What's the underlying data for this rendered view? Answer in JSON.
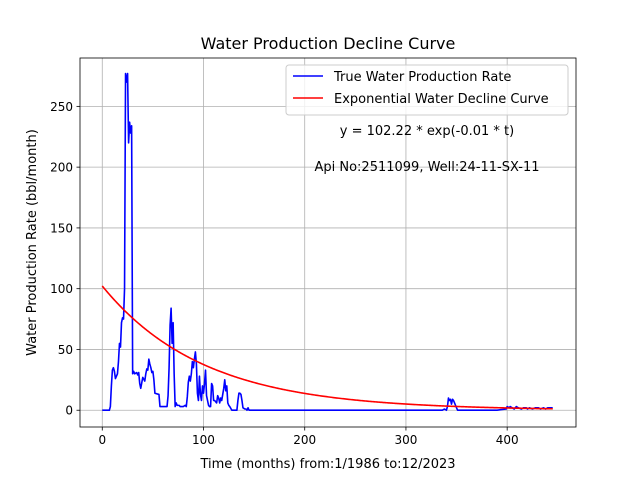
{
  "chart_data": {
    "type": "line",
    "title": "Water Production Decline Curve",
    "xlabel": "Time (months) from:1/1986 to:12/2023",
    "ylabel": "Water Production Rate (bbl/month)",
    "xlim": [
      -22,
      468
    ],
    "ylim": [
      -13.8,
      289.8
    ],
    "xticks": [
      0,
      100,
      200,
      300,
      400
    ],
    "yticks": [
      0,
      50,
      100,
      150,
      200,
      250
    ],
    "grid": true,
    "legend_position": "top-right",
    "annotations": [
      "y = 102.22 * exp(-0.01 * t)",
      "Api No:2511099, Well:24-11-SX-11"
    ],
    "series": [
      {
        "name": "True Water Production Rate",
        "color": "#0000ff",
        "points": [
          [
            0,
            0
          ],
          [
            5,
            0
          ],
          [
            7,
            0
          ],
          [
            8,
            3
          ],
          [
            9,
            20
          ],
          [
            10,
            33
          ],
          [
            11,
            35
          ],
          [
            12,
            32
          ],
          [
            13,
            26
          ],
          [
            14,
            28
          ],
          [
            15,
            30
          ],
          [
            16,
            40
          ],
          [
            17,
            55
          ],
          [
            18,
            52
          ],
          [
            19,
            72
          ],
          [
            20,
            76
          ],
          [
            21,
            75
          ],
          [
            22,
            100
          ],
          [
            23,
            277
          ],
          [
            24,
            270
          ],
          [
            25,
            277
          ],
          [
            26,
            220
          ],
          [
            27,
            237
          ],
          [
            28,
            228
          ],
          [
            29,
            234
          ],
          [
            30,
            30
          ],
          [
            31,
            32
          ],
          [
            32,
            30
          ],
          [
            34,
            31
          ],
          [
            35,
            29
          ],
          [
            36,
            31
          ],
          [
            37,
            22
          ],
          [
            38,
            18
          ],
          [
            40,
            27
          ],
          [
            42,
            24
          ],
          [
            43,
            30
          ],
          [
            44,
            34
          ],
          [
            45,
            33
          ],
          [
            46,
            42
          ],
          [
            47,
            38
          ],
          [
            48,
            35
          ],
          [
            49,
            31
          ],
          [
            50,
            32
          ],
          [
            51,
            25
          ],
          [
            52,
            14
          ],
          [
            56,
            13
          ],
          [
            57,
            3
          ],
          [
            64,
            3
          ],
          [
            65,
            12
          ],
          [
            66,
            35
          ],
          [
            67,
            70
          ],
          [
            68,
            84
          ],
          [
            69,
            55
          ],
          [
            70,
            72
          ],
          [
            71,
            30
          ],
          [
            72,
            3
          ],
          [
            73,
            6
          ],
          [
            74,
            4
          ],
          [
            76,
            4
          ],
          [
            77,
            3
          ],
          [
            80,
            3
          ],
          [
            82,
            4
          ],
          [
            83,
            3
          ],
          [
            84,
            11
          ],
          [
            85,
            23
          ],
          [
            86,
            28
          ],
          [
            87,
            24
          ],
          [
            88,
            30
          ],
          [
            89,
            40
          ],
          [
            90,
            35
          ],
          [
            91,
            42
          ],
          [
            92,
            48
          ],
          [
            93,
            38
          ],
          [
            94,
            14
          ],
          [
            95,
            8
          ],
          [
            96,
            28
          ],
          [
            97,
            13
          ],
          [
            98,
            8
          ],
          [
            99,
            20
          ],
          [
            100,
            14
          ],
          [
            101,
            22
          ],
          [
            102,
            33
          ],
          [
            103,
            12
          ],
          [
            104,
            8
          ],
          [
            105,
            4
          ],
          [
            106,
            3
          ],
          [
            107,
            3
          ],
          [
            108,
            22
          ],
          [
            109,
            20
          ],
          [
            110,
            8
          ],
          [
            111,
            8
          ],
          [
            113,
            6
          ],
          [
            114,
            12
          ],
          [
            115,
            10
          ],
          [
            116,
            6
          ],
          [
            117,
            10
          ],
          [
            118,
            8
          ],
          [
            119,
            13
          ],
          [
            120,
            18
          ],
          [
            121,
            25
          ],
          [
            122,
            16
          ],
          [
            123,
            20
          ],
          [
            124,
            6
          ],
          [
            125,
            4
          ],
          [
            126,
            3
          ],
          [
            128,
            0
          ],
          [
            133,
            0
          ],
          [
            134,
            8
          ],
          [
            135,
            14
          ],
          [
            136,
            14
          ],
          [
            137,
            13
          ],
          [
            138,
            8
          ],
          [
            139,
            2
          ],
          [
            141,
            1
          ],
          [
            142,
            1
          ],
          [
            143,
            0
          ],
          [
            144,
            2
          ],
          [
            145,
            0
          ],
          [
            336,
            0
          ],
          [
            338,
            1
          ],
          [
            340,
            0
          ],
          [
            341,
            3
          ],
          [
            342,
            10
          ],
          [
            343,
            8
          ],
          [
            344,
            9
          ],
          [
            345,
            5
          ],
          [
            346,
            9
          ],
          [
            347,
            8
          ],
          [
            348,
            6
          ],
          [
            349,
            4
          ],
          [
            350,
            2
          ],
          [
            351,
            0
          ],
          [
            390,
            0
          ],
          [
            399,
            1
          ],
          [
            400,
            3
          ],
          [
            402,
            2
          ],
          [
            403,
            3
          ],
          [
            405,
            2
          ],
          [
            407,
            1
          ],
          [
            409,
            3
          ],
          [
            411,
            2
          ],
          [
            414,
            1
          ],
          [
            416,
            2
          ],
          [
            419,
            2
          ],
          [
            420,
            1
          ],
          [
            422,
            2
          ],
          [
            425,
            1
          ],
          [
            428,
            2
          ],
          [
            431,
            2
          ],
          [
            433,
            1
          ],
          [
            436,
            2
          ],
          [
            438,
            1
          ],
          [
            440,
            2
          ],
          [
            442,
            2
          ],
          [
            445,
            2
          ]
        ]
      },
      {
        "name": "Exponential Water Decline Curve",
        "color": "#ff0000",
        "function": {
          "a": 102.22,
          "b": 0.01,
          "t_start": 0,
          "t_end": 445
        }
      }
    ]
  }
}
